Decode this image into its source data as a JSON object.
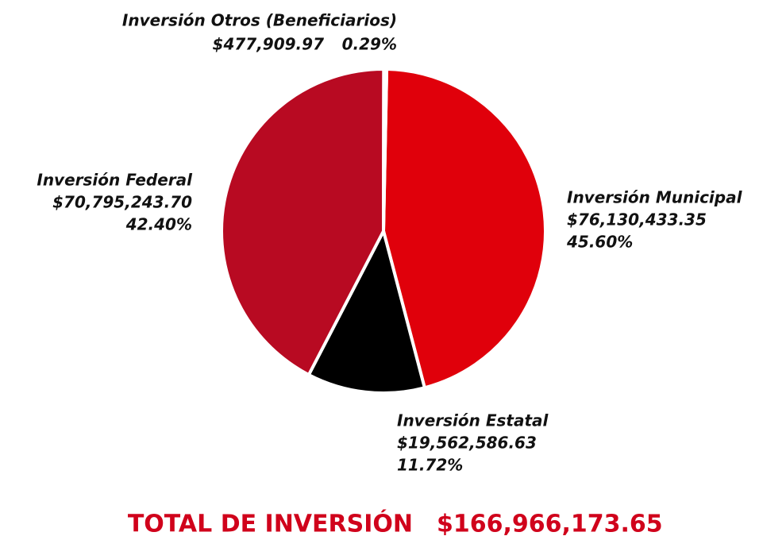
{
  "chart_data": {
    "type": "pie",
    "categories": [
      "Inversión Municipal",
      "Inversión Estatal",
      "Inversión Federal",
      "Inversión Otros (Beneficiarios)"
    ],
    "values": [
      45.6,
      11.72,
      42.4,
      0.29
    ],
    "value_labels": [
      "45.60%",
      "11.72%",
      "42.40%",
      "0.29%"
    ],
    "amounts": [
      "$76,130,433.35",
      "$19,562,586.63",
      "$70,795,243.70",
      "$477,909.97"
    ],
    "colors": [
      "#e0000b",
      "#000000",
      "#b80a22",
      "#5a5a5a"
    ],
    "total_label": "TOTAL DE INVERSIÓN",
    "total": "$166,966,173.65"
  }
}
